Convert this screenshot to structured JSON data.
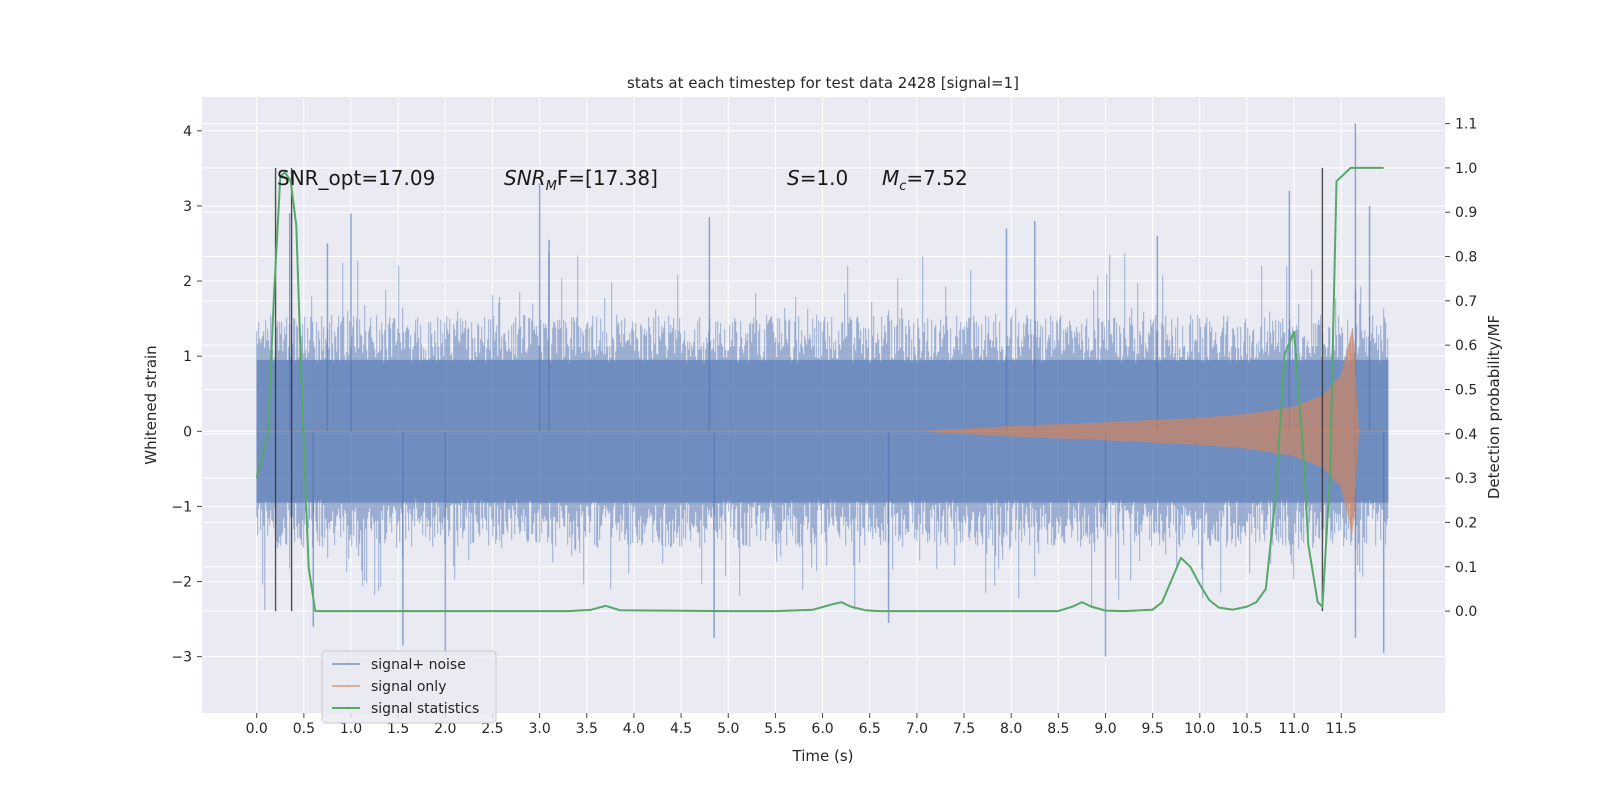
{
  "chart_data": {
    "type": "line",
    "title": "stats at each timestep for test data 2428 [signal=1]",
    "xlabel": "Time (s)",
    "ylabel": "Whitened strain",
    "y2label": "Detection probability/MF",
    "xlim": [
      -0.58,
      12.6
    ],
    "ylim": [
      -3.75,
      4.45
    ],
    "y2lim": [
      -0.23,
      1.16
    ],
    "x_ticks": [
      0.0,
      0.5,
      1.0,
      1.5,
      2.0,
      2.5,
      3.0,
      3.5,
      4.0,
      4.5,
      5.0,
      5.5,
      6.0,
      6.5,
      7.0,
      7.5,
      8.0,
      8.5,
      9.0,
      9.5,
      10.0,
      10.5,
      11.0,
      11.5
    ],
    "x_tick_labels": [
      "0.0",
      "0.5",
      "1.0",
      "1.5",
      "2.0",
      "2.5",
      "3.0",
      "3.5",
      "4.0",
      "4.5",
      "5.0",
      "5.5",
      "6.0",
      "6.5",
      "7.0",
      "7.5",
      "8.0",
      "8.5",
      "9.0",
      "9.5",
      "10.0",
      "10.5",
      "11.0",
      "11.5"
    ],
    "y_ticks": [
      -3,
      -2,
      -1,
      0,
      1,
      2,
      3,
      4
    ],
    "y_tick_labels": [
      "−3",
      "−2",
      "−1",
      "0",
      "1",
      "2",
      "3",
      "4"
    ],
    "y2_ticks": [
      0.0,
      0.1,
      0.2,
      0.3,
      0.4,
      0.5,
      0.6,
      0.7,
      0.8,
      0.9,
      1.0,
      1.1
    ],
    "y2_tick_labels": [
      "0.0",
      "0.1",
      "0.2",
      "0.3",
      "0.4",
      "0.5",
      "0.6",
      "0.7",
      "0.8",
      "0.9",
      "1.0",
      "1.1"
    ],
    "grid": true,
    "legend_position": "lower-left",
    "annotations": {
      "snr_opt": "SNR_opt=17.09",
      "snr_mf_main": "SNR",
      "snr_mf_sub": "M",
      "snr_mf_rest": "F=[17.38]",
      "s_var": "S",
      "s_val": "=1.0",
      "mc_var": "M",
      "mc_sub": "c",
      "mc_val": "=7.52"
    },
    "series": [
      {
        "name": "signal+ noise",
        "color": "#4c72b0",
        "axis": "left",
        "x_range": [
          0.0,
          12.0
        ],
        "typical_envelope": [
          -1.55,
          1.55
        ],
        "spikes": [
          {
            "x": 3.0,
            "y": 3.3
          },
          {
            "x": 1.0,
            "y": 2.9
          },
          {
            "x": 11.65,
            "y": 4.1
          },
          {
            "x": 9.0,
            "y": -3.0
          },
          {
            "x": 2.0,
            "y": -3.0
          },
          {
            "x": 11.95,
            "y": -2.95
          },
          {
            "x": 4.85,
            "y": -2.75
          },
          {
            "x": 11.65,
            "y": -2.75
          },
          {
            "x": 1.55,
            "y": -2.85
          },
          {
            "x": 0.6,
            "y": -2.6
          },
          {
            "x": 0.75,
            "y": 2.5
          },
          {
            "x": 3.1,
            "y": 2.55
          },
          {
            "x": 4.8,
            "y": 2.85
          },
          {
            "x": 8.25,
            "y": 2.8
          },
          {
            "x": 10.95,
            "y": 3.2
          },
          {
            "x": 11.8,
            "y": 3.0
          },
          {
            "x": 0.35,
            "y": 2.9
          },
          {
            "x": 9.55,
            "y": 2.6
          },
          {
            "x": 7.95,
            "y": 2.7
          },
          {
            "x": 6.7,
            "y": -2.55
          }
        ]
      },
      {
        "name": "signal only",
        "color": "#dd8452",
        "axis": "left",
        "envelope": [
          {
            "x": 0.0,
            "a": 0.0
          },
          {
            "x": 7.0,
            "a": 0.0
          },
          {
            "x": 8.0,
            "a": 0.07
          },
          {
            "x": 9.0,
            "a": 0.12
          },
          {
            "x": 10.0,
            "a": 0.18
          },
          {
            "x": 10.5,
            "a": 0.23
          },
          {
            "x": 11.0,
            "a": 0.33
          },
          {
            "x": 11.3,
            "a": 0.48
          },
          {
            "x": 11.5,
            "a": 0.75
          },
          {
            "x": 11.63,
            "a": 1.45
          },
          {
            "x": 11.68,
            "a": 0.0
          },
          {
            "x": 12.0,
            "a": 0.0
          }
        ]
      },
      {
        "name": "signal statistics",
        "color": "#55a868",
        "axis": "right",
        "x": [
          0.0,
          0.12,
          0.18,
          0.25,
          0.3,
          0.36,
          0.42,
          0.47,
          0.55,
          0.62,
          1.0,
          2.0,
          3.0,
          3.3,
          3.55,
          3.7,
          3.85,
          5.0,
          5.5,
          5.9,
          6.1,
          6.2,
          6.3,
          6.45,
          6.6,
          7.0,
          8.0,
          8.5,
          8.65,
          8.75,
          8.85,
          9.0,
          9.2,
          9.5,
          9.6,
          9.7,
          9.8,
          9.9,
          10.0,
          10.1,
          10.2,
          10.35,
          10.5,
          10.6,
          10.7,
          10.8,
          10.9,
          11.0,
          11.1,
          11.15,
          11.25,
          11.3,
          11.38,
          11.45,
          11.6,
          11.7,
          11.8,
          11.95
        ],
        "y": [
          0.3,
          0.4,
          0.7,
          0.98,
          0.99,
          0.97,
          0.87,
          0.55,
          0.1,
          0.0,
          0.0,
          0.0,
          0.0,
          0.0,
          0.003,
          0.012,
          0.002,
          0.0,
          0.0,
          0.003,
          0.015,
          0.02,
          0.01,
          0.002,
          0.0,
          0.0,
          0.0,
          0.0,
          0.01,
          0.02,
          0.01,
          0.001,
          0.0,
          0.003,
          0.02,
          0.07,
          0.12,
          0.1,
          0.06,
          0.025,
          0.008,
          0.003,
          0.01,
          0.02,
          0.05,
          0.25,
          0.58,
          0.63,
          0.35,
          0.15,
          0.02,
          0.01,
          0.3,
          0.97,
          1.0,
          1.0,
          1.0,
          1.0
        ]
      }
    ],
    "vertical_markers": [
      0.2,
      0.37,
      11.3
    ]
  }
}
